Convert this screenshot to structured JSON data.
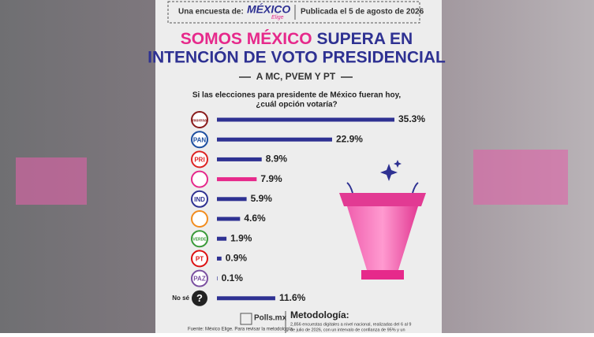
{
  "header": {
    "intro": "Una encuesta de:",
    "brand": "MÉXICO",
    "brand_sub": "Elige",
    "published": "Publicada el 5 de agosto de 2026"
  },
  "chart_data": {
    "type": "bar",
    "orientation": "horizontal",
    "title_highlight": "SOMOS MÉXICO",
    "title_rest": "SUPERA EN",
    "title_line2": "INTENCIÓN DE VOTO PRESIDENCIAL",
    "subtitle": "A MC, PVEM Y PT",
    "question": [
      "Si las elecciones para presidente de México fueran hoy,",
      "¿cuál opción votaría?"
    ],
    "categories": [
      "morena",
      "PAN",
      "PRI",
      null,
      "IND",
      null,
      "VERDE",
      "PT",
      "PAZ",
      "No sé"
    ],
    "values": [
      35.3,
      22.9,
      8.9,
      7.9,
      5.9,
      4.6,
      1.9,
      0.9,
      0.1,
      11.6
    ],
    "value_labels": [
      "35.3%",
      "22.9%",
      "8.9%",
      "7.9%",
      "5.9%",
      "4.6%",
      "1.9%",
      "0.9%",
      "0.1%",
      "11.6%"
    ],
    "colors": [
      "#2e3192",
      "#2e3192",
      "#2e3192",
      "#e6298b",
      "#2e3192",
      "#2e3192",
      "#2e3192",
      "#2e3192",
      "#2e3192",
      "#2e3192"
    ]
  },
  "footer": {
    "brand": "Polls.mx",
    "source": "Fuente: México Elige. Para revisar la metodología",
    "method_title": "Metodología:",
    "method_text": [
      "2,856 encuestas digitales a nivel nacional, realizadas del 6 al 9",
      "de julio de 2026, con un intervalo de confianza de 95% y un"
    ]
  }
}
